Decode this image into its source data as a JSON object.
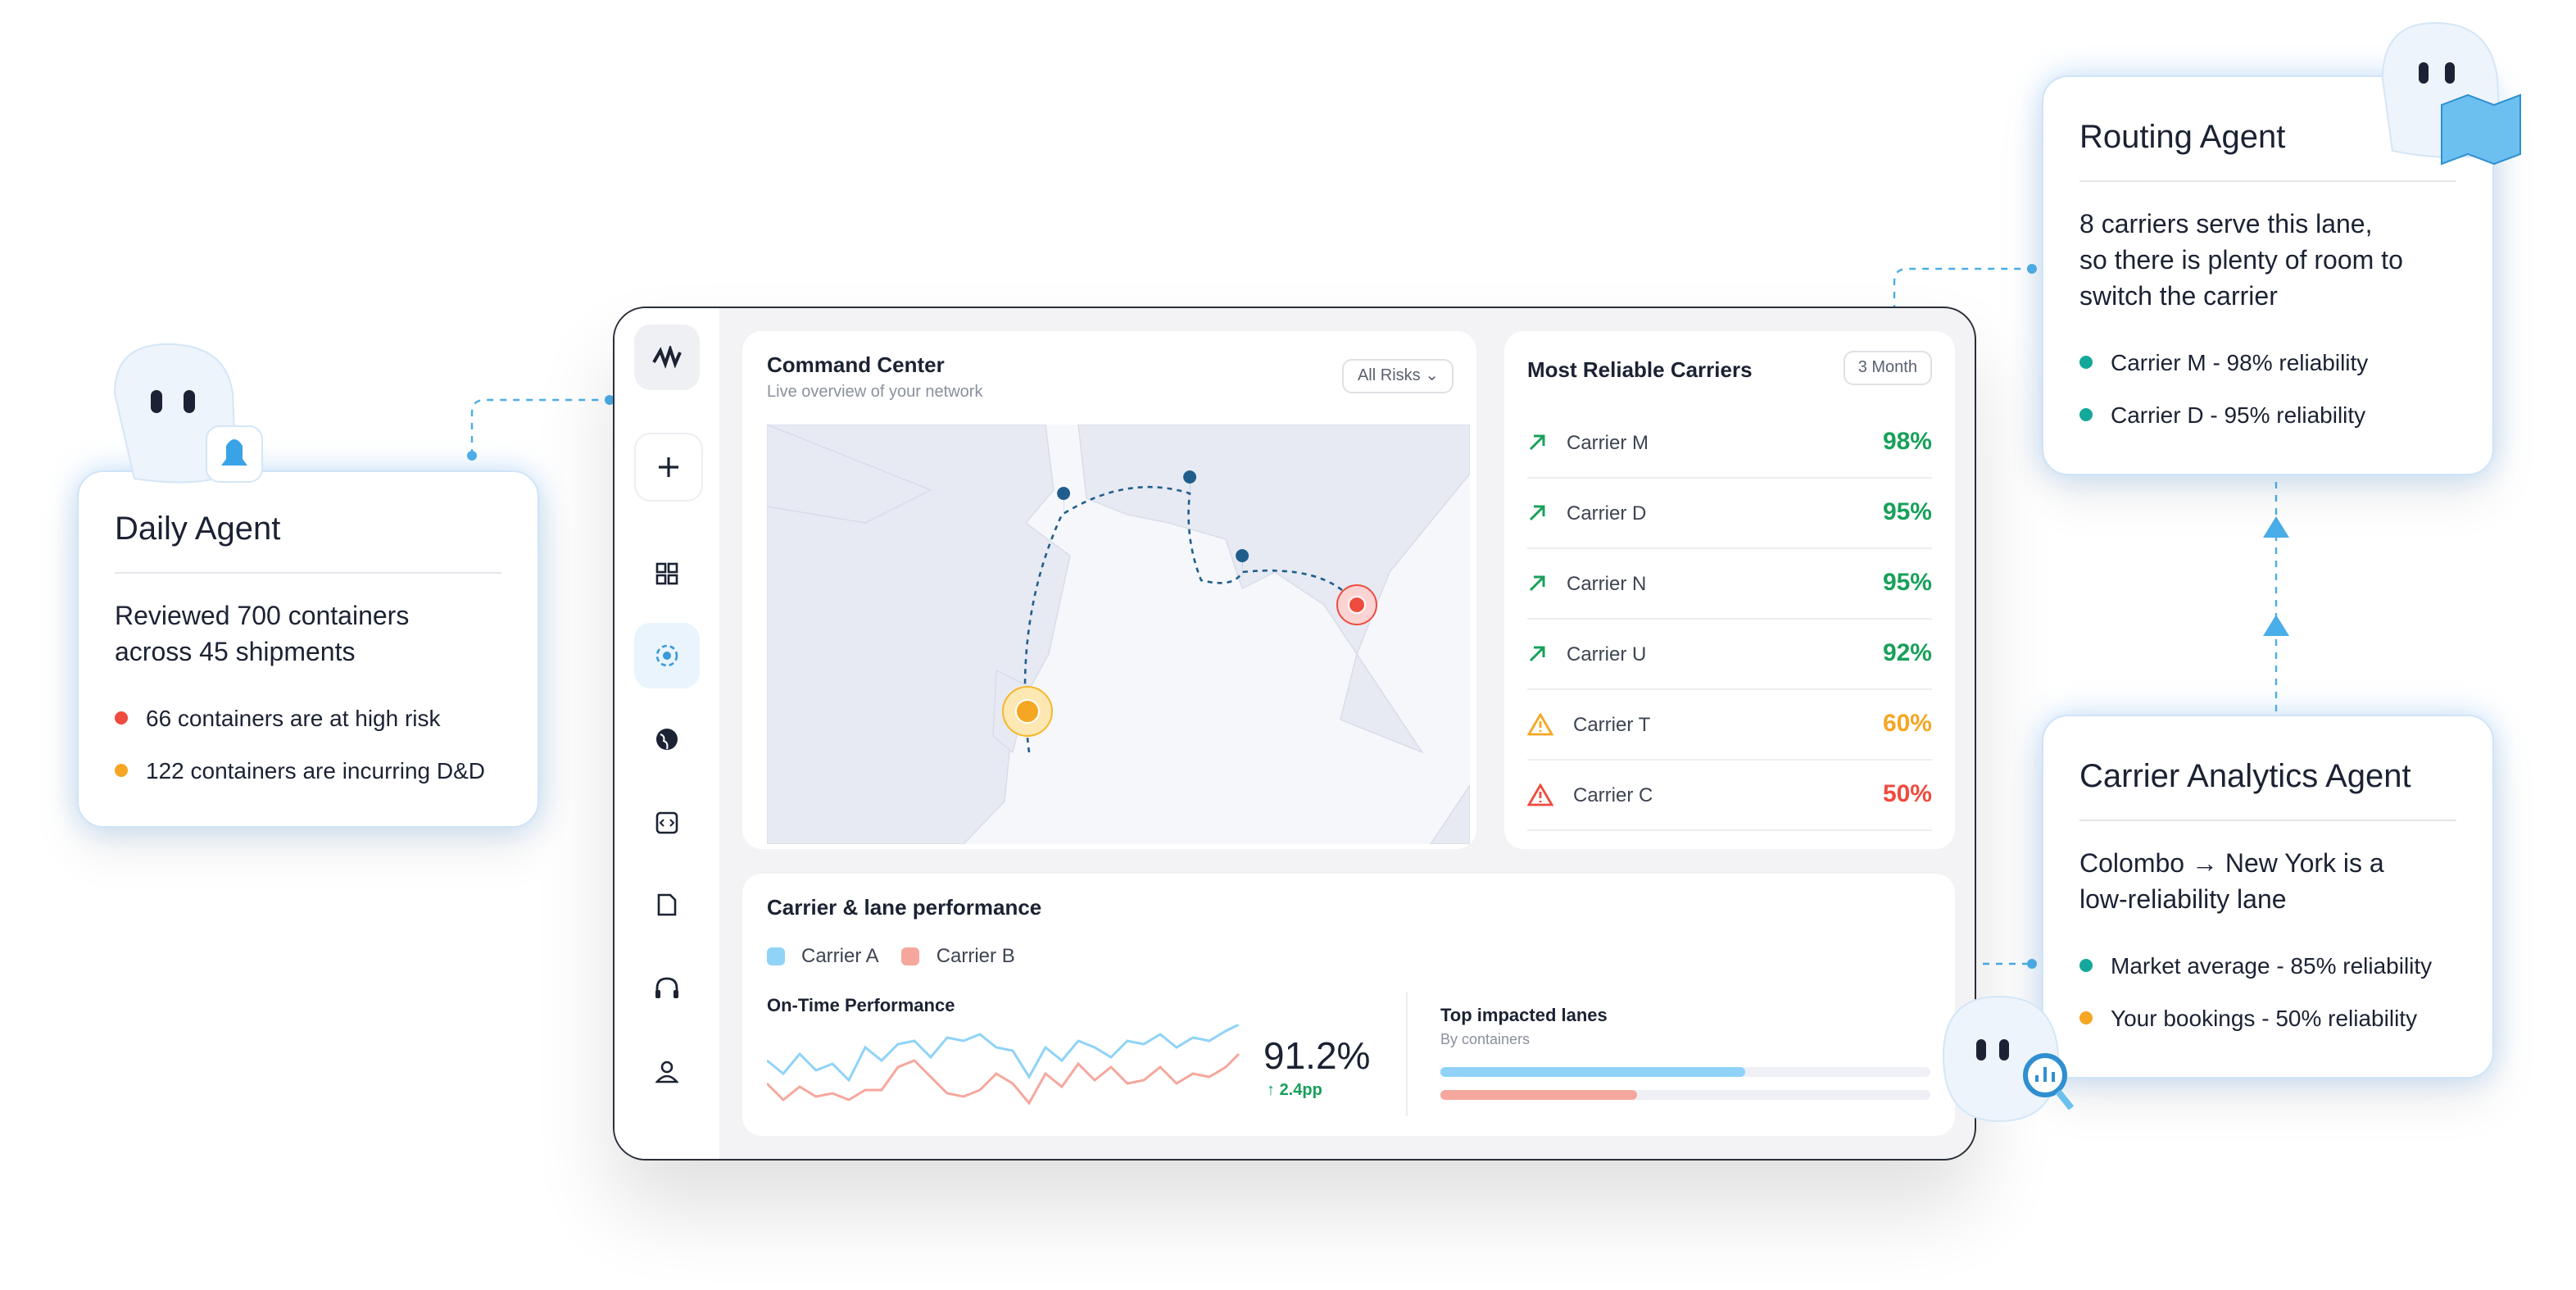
{
  "daily_agent": {
    "title": "Daily Agent",
    "summary": "Reviewed 700 containers across 45 shipments",
    "items": [
      "66 containers are at high risk",
      "122 containers are incurring D&D"
    ]
  },
  "routing_agent": {
    "title": "Routing Agent",
    "summary": "8 carriers serve this lane, so there is plenty of room to switch the carrier",
    "items": [
      "Carrier M - 98% reliability",
      "Carrier D - 95% reliability"
    ]
  },
  "carrier_analytics_agent": {
    "title": "Carrier Analytics Agent",
    "summary": "Colombo → New York is a low-reliability lane",
    "items": [
      "Market average - 85% reliability",
      "Your bookings - 50% reliability"
    ]
  },
  "command_center": {
    "title": "Command Center",
    "subtitle": "Live overview of your network",
    "filter": "All Risks"
  },
  "reliable_carriers": {
    "title": "Most Reliable Carriers",
    "period": "3 Month",
    "rows": [
      [
        "Carrier M",
        "98%"
      ],
      [
        "Carrier D",
        "95%"
      ],
      [
        "Carrier N",
        "95%"
      ],
      [
        "Carrier U",
        "92%"
      ],
      [
        "Carrier T",
        "60%"
      ],
      [
        "Carrier C",
        "50%"
      ]
    ]
  },
  "performance": {
    "title": "Carrier & lane performance",
    "legend": [
      "Carrier A",
      "Carrier B"
    ],
    "on_time_title": "On-Time Performance",
    "on_time_value": "91.2%",
    "on_time_change": "2.4pp",
    "lanes_title": "Top impacted lanes",
    "lanes_subtitle": "By containers"
  }
}
